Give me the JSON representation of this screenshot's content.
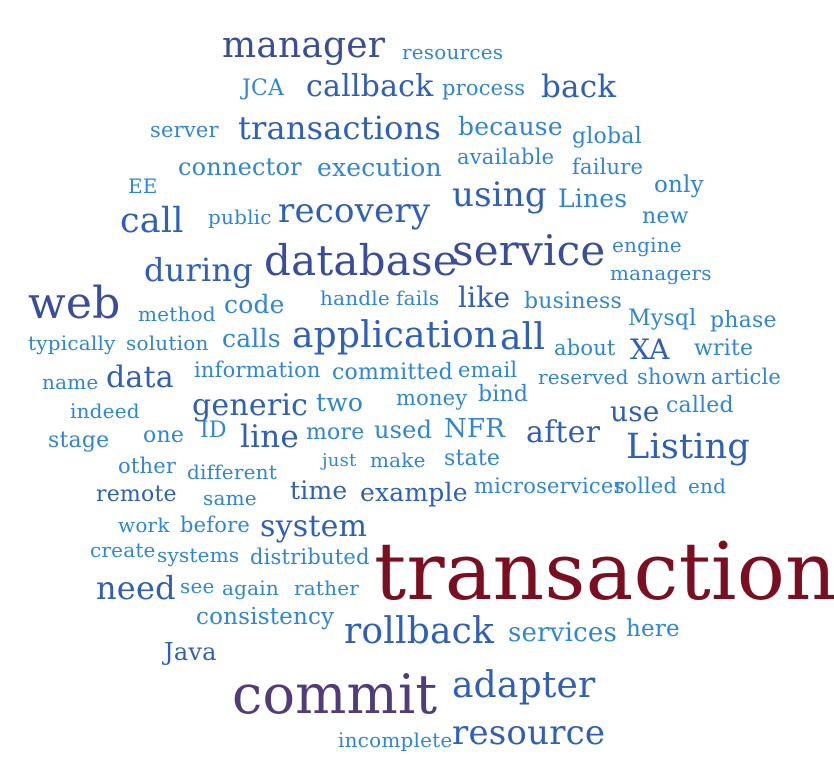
{
  "colors": {
    "dark_red": "#7a0f22",
    "purple": "#503c78",
    "indigo": "#3a4d9a",
    "blue": "#2f5fb8",
    "light_blue": "#2f86d8"
  },
  "words": {
    "transaction": "transaction",
    "commit": "commit",
    "manager": "manager",
    "resources": "resources",
    "JCA": "JCA",
    "callback": "callback",
    "process": "process",
    "back": "back",
    "server": "server",
    "transactions": "transactions",
    "because": "because",
    "global": "global",
    "connector": "connector",
    "execution": "execution",
    "available": "available",
    "failure": "failure",
    "EE": "EE",
    "using": "using",
    "Lines": "Lines",
    "only": "only",
    "call": "call",
    "public": "public",
    "recovery": "recovery",
    "new": "new",
    "service": "service",
    "engine": "engine",
    "database": "database",
    "during": "during",
    "managers": "managers",
    "web": "web",
    "code": "code",
    "handle": "handle",
    "fails": "fails",
    "like": "like",
    "business": "business",
    "method": "method",
    "Mysql": "Mysql",
    "phase": "phase",
    "typically": "typically",
    "solution": "solution",
    "calls": "calls",
    "application": "application",
    "all": "all",
    "about": "about",
    "XA": "XA",
    "write": "write",
    "name": "name",
    "data": "data",
    "information": "information",
    "committed": "committed",
    "email": "email",
    "reserved": "reserved",
    "shown": "shown",
    "article": "article",
    "indeed": "indeed",
    "generic": "generic",
    "two": "two",
    "money": "money",
    "bind": "bind",
    "use": "use",
    "called": "called",
    "stage": "stage",
    "one": "one",
    "ID": "ID",
    "line": "line",
    "more": "more",
    "used": "used",
    "NFR": "NFR",
    "after": "after",
    "Listing": "Listing",
    "other": "other",
    "different": "different",
    "just": "just",
    "make": "make",
    "state": "state",
    "remote": "remote",
    "same": "same",
    "time": "time",
    "example": "example",
    "microservices": "microservices",
    "rolled": "rolled",
    "end": "end",
    "work": "work",
    "before": "before",
    "system": "system",
    "create": "create",
    "systems": "systems",
    "distributed": "distributed",
    "need": "need",
    "see": "see",
    "again": "again",
    "rather": "rather",
    "consistency": "consistency",
    "rollback": "rollback",
    "services": "services",
    "here": "here",
    "Java": "Java",
    "adapter": "adapter",
    "incomplete": "incomplete",
    "resource": "resource"
  }
}
